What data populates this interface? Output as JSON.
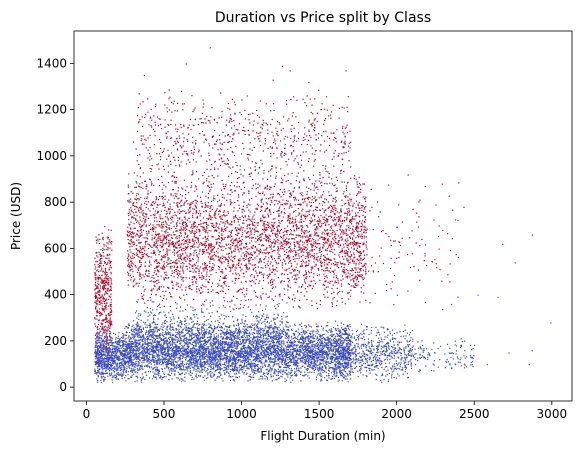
{
  "chart_data": {
    "type": "scatter",
    "title": "Duration vs Price split by Class",
    "xlabel": "Flight Duration (min)",
    "ylabel": "Price (USD)",
    "xlim": [
      -80,
      3130
    ],
    "ylim": [
      -60,
      1540
    ],
    "x_ticks": [
      0,
      500,
      1000,
      1500,
      2000,
      2500,
      3000
    ],
    "y_ticks": [
      0,
      200,
      400,
      600,
      800,
      1000,
      1200,
      1400
    ],
    "grid": false,
    "legend": "none",
    "series": [
      {
        "color": "#b40426",
        "clusters": [
          {
            "x": [
              50,
              160
            ],
            "y": [
              60,
              720
            ],
            "n": 500
          },
          {
            "x": [
              260,
              1800
            ],
            "y": [
              330,
              950
            ],
            "n": 3800
          },
          {
            "x": [
              300,
              1700
            ],
            "y": [
              850,
              1300
            ],
            "n": 700
          },
          {
            "x": [
              1700,
              2400
            ],
            "y": [
              300,
              900
            ],
            "n": 120
          }
        ],
        "outliers": [
          [
            795,
            1470
          ],
          [
            640,
            1400
          ],
          [
            1260,
            1390
          ],
          [
            1310,
            1370
          ],
          [
            1670,
            1370
          ],
          [
            370,
            1350
          ],
          [
            1430,
            1320
          ],
          [
            2680,
            620
          ],
          [
            2870,
            660
          ],
          [
            2760,
            540
          ],
          [
            2290,
            880
          ],
          [
            2250,
            790
          ],
          [
            1890,
            760
          ],
          [
            2430,
            780
          ],
          [
            2180,
            870
          ],
          [
            2070,
            920
          ],
          [
            1200,
            1330
          ]
        ]
      },
      {
        "color": "#3b4cc0",
        "clusters": [
          {
            "x": [
              50,
              250
            ],
            "y": [
              20,
              260
            ],
            "n": 800
          },
          {
            "x": [
              250,
              1700
            ],
            "y": [
              20,
              290
            ],
            "n": 5200
          },
          {
            "x": [
              300,
              1300
            ],
            "y": [
              120,
              390
            ],
            "n": 600
          },
          {
            "x": [
              1600,
              2100
            ],
            "y": [
              20,
              280
            ],
            "n": 700
          },
          {
            "x": [
              2100,
              2500
            ],
            "y": [
              50,
              220
            ],
            "n": 120
          }
        ],
        "outliers": [
          [
            2520,
            400
          ],
          [
            2650,
            390
          ],
          [
            2850,
            100
          ],
          [
            2720,
            150
          ],
          [
            2990,
            280
          ],
          [
            2870,
            160
          ],
          [
            2580,
            100
          ],
          [
            1930,
            420
          ],
          [
            2350,
            360
          ],
          [
            2000,
            400
          ],
          [
            2420,
            200
          ]
        ]
      }
    ]
  }
}
